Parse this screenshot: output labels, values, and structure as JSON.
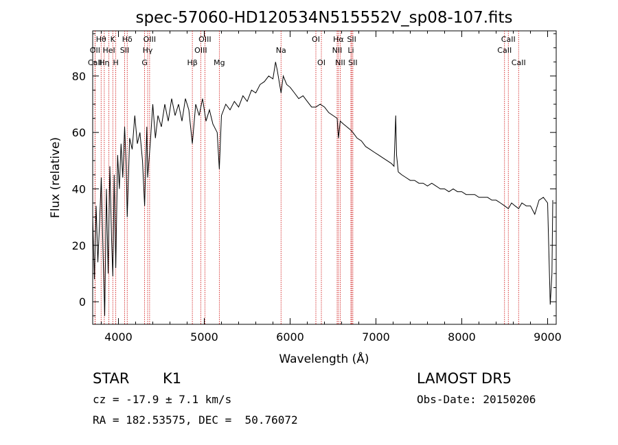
{
  "chart_data": {
    "type": "line",
    "title": "spec-57060-HD120534N515552V_sp08-107.fits",
    "xlabel": "Wavelength (Å)",
    "ylabel": "Flux (relative)",
    "xlim": [
      3700,
      9100
    ],
    "ylim": [
      -8,
      96
    ],
    "xticks": [
      4000,
      5000,
      6000,
      7000,
      8000,
      9000
    ],
    "yticks": [
      0,
      20,
      40,
      60,
      80
    ],
    "grid": false,
    "line_color": "#000000",
    "marker_color": "#cc0000",
    "spectral_lines": [
      {
        "label": "CaII",
        "wavelength": 3727,
        "row": 3
      },
      {
        "label": "Hθ",
        "wavelength": 3798,
        "row": 1
      },
      {
        "label": "OII",
        "wavelength": 3727,
        "row": 2
      },
      {
        "label": "Hη",
        "wavelength": 3835,
        "row": 3
      },
      {
        "label": "K",
        "wavelength": 3934,
        "row": 1
      },
      {
        "label": "HeI",
        "wavelength": 3889,
        "row": 2
      },
      {
        "label": "H",
        "wavelength": 3969,
        "row": 3
      },
      {
        "label": "SII",
        "wavelength": 4072,
        "row": 2
      },
      {
        "label": "Hδ",
        "wavelength": 4102,
        "row": 1
      },
      {
        "label": "OIII",
        "wavelength": 4363,
        "row": 1
      },
      {
        "label": "Hγ",
        "wavelength": 4340,
        "row": 2
      },
      {
        "label": "G",
        "wavelength": 4305,
        "row": 3
      },
      {
        "label": "OIII",
        "wavelength": 5007,
        "row": 1
      },
      {
        "label": "OIII",
        "wavelength": 4959,
        "row": 2
      },
      {
        "label": "Hβ",
        "wavelength": 4861,
        "row": 3
      },
      {
        "label": "Mg",
        "wavelength": 5175,
        "row": 3
      },
      {
        "label": "Na",
        "wavelength": 5894,
        "row": 2
      },
      {
        "label": "OI",
        "wavelength": 6300,
        "row": 1
      },
      {
        "label": "OI",
        "wavelength": 6364,
        "row": 3
      },
      {
        "label": "Hα",
        "wavelength": 6563,
        "row": 1
      },
      {
        "label": "NII",
        "wavelength": 6548,
        "row": 2
      },
      {
        "label": "NII",
        "wavelength": 6584,
        "row": 3
      },
      {
        "label": "SII",
        "wavelength": 6717,
        "row": 1
      },
      {
        "label": "Li",
        "wavelength": 6708,
        "row": 2
      },
      {
        "label": "SII",
        "wavelength": 6731,
        "row": 3
      },
      {
        "label": "CaII",
        "wavelength": 8542,
        "row": 1
      },
      {
        "label": "CaII",
        "wavelength": 8498,
        "row": 2
      },
      {
        "label": "CaII",
        "wavelength": 8662,
        "row": 3
      }
    ],
    "spectrum": [
      [
        3700,
        30
      ],
      [
        3720,
        8
      ],
      [
        3740,
        34
      ],
      [
        3760,
        14
      ],
      [
        3780,
        28
      ],
      [
        3800,
        44
      ],
      [
        3820,
        18
      ],
      [
        3840,
        -5
      ],
      [
        3860,
        40
      ],
      [
        3880,
        10
      ],
      [
        3900,
        48
      ],
      [
        3920,
        22
      ],
      [
        3934,
        9
      ],
      [
        3950,
        45
      ],
      [
        3969,
        12
      ],
      [
        3990,
        52
      ],
      [
        4010,
        40
      ],
      [
        4030,
        56
      ],
      [
        4050,
        44
      ],
      [
        4072,
        62
      ],
      [
        4090,
        48
      ],
      [
        4102,
        30
      ],
      [
        4130,
        58
      ],
      [
        4160,
        54
      ],
      [
        4190,
        66
      ],
      [
        4220,
        56
      ],
      [
        4250,
        60
      ],
      [
        4280,
        50
      ],
      [
        4305,
        34
      ],
      [
        4330,
        62
      ],
      [
        4340,
        44
      ],
      [
        4370,
        56
      ],
      [
        4400,
        70
      ],
      [
        4430,
        58
      ],
      [
        4460,
        66
      ],
      [
        4500,
        62
      ],
      [
        4540,
        70
      ],
      [
        4580,
        64
      ],
      [
        4620,
        72
      ],
      [
        4660,
        66
      ],
      [
        4700,
        70
      ],
      [
        4740,
        64
      ],
      [
        4780,
        72
      ],
      [
        4820,
        68
      ],
      [
        4861,
        56
      ],
      [
        4900,
        70
      ],
      [
        4940,
        66
      ],
      [
        4980,
        72
      ],
      [
        5020,
        64
      ],
      [
        5060,
        68
      ],
      [
        5100,
        63
      ],
      [
        5150,
        60
      ],
      [
        5175,
        47
      ],
      [
        5200,
        66
      ],
      [
        5250,
        70
      ],
      [
        5300,
        68
      ],
      [
        5350,
        71
      ],
      [
        5400,
        69
      ],
      [
        5450,
        73
      ],
      [
        5500,
        71
      ],
      [
        5550,
        75
      ],
      [
        5600,
        74
      ],
      [
        5650,
        77
      ],
      [
        5700,
        78
      ],
      [
        5750,
        80
      ],
      [
        5800,
        79
      ],
      [
        5830,
        85
      ],
      [
        5850,
        82
      ],
      [
        5894,
        74
      ],
      [
        5920,
        80
      ],
      [
        5960,
        77
      ],
      [
        6000,
        76
      ],
      [
        6050,
        74
      ],
      [
        6100,
        72
      ],
      [
        6150,
        73
      ],
      [
        6200,
        71
      ],
      [
        6250,
        69
      ],
      [
        6300,
        69
      ],
      [
        6350,
        70
      ],
      [
        6400,
        69
      ],
      [
        6450,
        67
      ],
      [
        6500,
        66
      ],
      [
        6548,
        65
      ],
      [
        6563,
        58
      ],
      [
        6584,
        64
      ],
      [
        6620,
        63
      ],
      [
        6660,
        62
      ],
      [
        6700,
        61
      ],
      [
        6731,
        60
      ],
      [
        6780,
        58
      ],
      [
        6830,
        57
      ],
      [
        6880,
        55
      ],
      [
        6930,
        54
      ],
      [
        6980,
        53
      ],
      [
        7030,
        52
      ],
      [
        7080,
        51
      ],
      [
        7130,
        50
      ],
      [
        7180,
        49
      ],
      [
        7210,
        48
      ],
      [
        7230,
        66
      ],
      [
        7240,
        52
      ],
      [
        7260,
        46
      ],
      [
        7300,
        45
      ],
      [
        7350,
        44
      ],
      [
        7400,
        43
      ],
      [
        7450,
        43
      ],
      [
        7500,
        42
      ],
      [
        7550,
        42
      ],
      [
        7600,
        41
      ],
      [
        7650,
        42
      ],
      [
        7700,
        41
      ],
      [
        7750,
        40
      ],
      [
        7800,
        40
      ],
      [
        7850,
        39
      ],
      [
        7900,
        40
      ],
      [
        7950,
        39
      ],
      [
        8000,
        39
      ],
      [
        8050,
        38
      ],
      [
        8100,
        38
      ],
      [
        8150,
        38
      ],
      [
        8200,
        37
      ],
      [
        8250,
        37
      ],
      [
        8300,
        37
      ],
      [
        8350,
        36
      ],
      [
        8400,
        36
      ],
      [
        8450,
        35
      ],
      [
        8498,
        34
      ],
      [
        8542,
        33
      ],
      [
        8580,
        35
      ],
      [
        8620,
        34
      ],
      [
        8662,
        33
      ],
      [
        8700,
        35
      ],
      [
        8750,
        34
      ],
      [
        8800,
        34
      ],
      [
        8850,
        31
      ],
      [
        8900,
        36
      ],
      [
        8950,
        37
      ],
      [
        9000,
        35
      ],
      [
        9030,
        -1
      ],
      [
        9050,
        10
      ],
      [
        9060,
        36
      ]
    ]
  },
  "footer": {
    "object_class": "STAR",
    "subclass": "K1",
    "survey": "LAMOST DR5",
    "redshift": "cz = -17.9 ± 7.1 km/s",
    "obs_date": "Obs-Date: 20150206",
    "coords": "RA = 182.53575, DEC =  50.76072"
  }
}
